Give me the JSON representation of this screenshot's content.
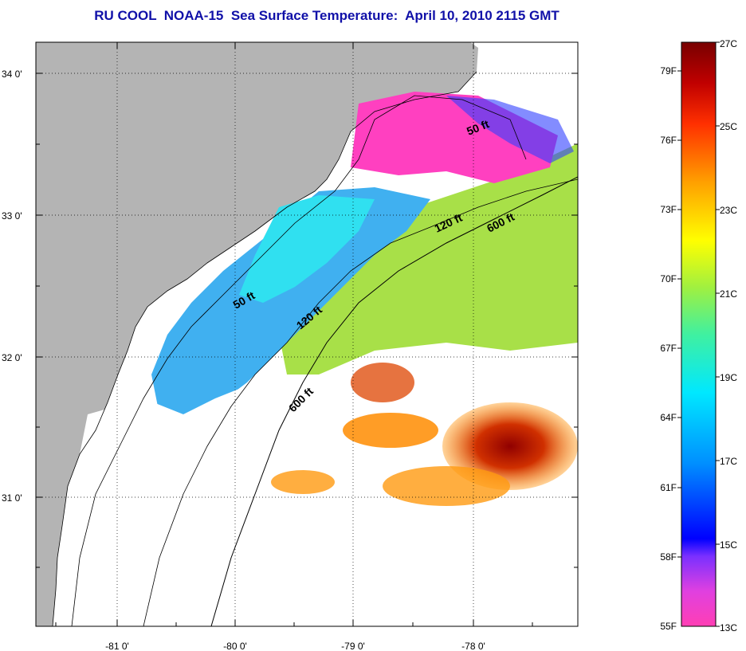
{
  "title": "RU COOL  NOAA-15  Sea Surface Temperature:  April 10, 2010 2115 GMT",
  "map": {
    "lat_ticks": [
      "34 0'",
      "33 0'",
      "32 0'",
      "31 0'"
    ],
    "lon_ticks": [
      "-81 0'",
      "-80 0'",
      "-79 0'",
      "-78 0'"
    ],
    "contour_labels": [
      "50 ft",
      "120 ft",
      "600 ft",
      "50 ft",
      "120 ft",
      "600 ft"
    ],
    "colors": {
      "land": "#b4b4b4",
      "cloud": "#ffffff",
      "frame": "#000000"
    }
  },
  "colorbar": {
    "fahrenheit": [
      "79F",
      "76F",
      "73F",
      "70F",
      "67F",
      "64F",
      "61F",
      "58F",
      "55F"
    ],
    "celsius": [
      "27C",
      "25C",
      "23C",
      "21C",
      "19C",
      "17C",
      "15C",
      "13C"
    ]
  }
}
